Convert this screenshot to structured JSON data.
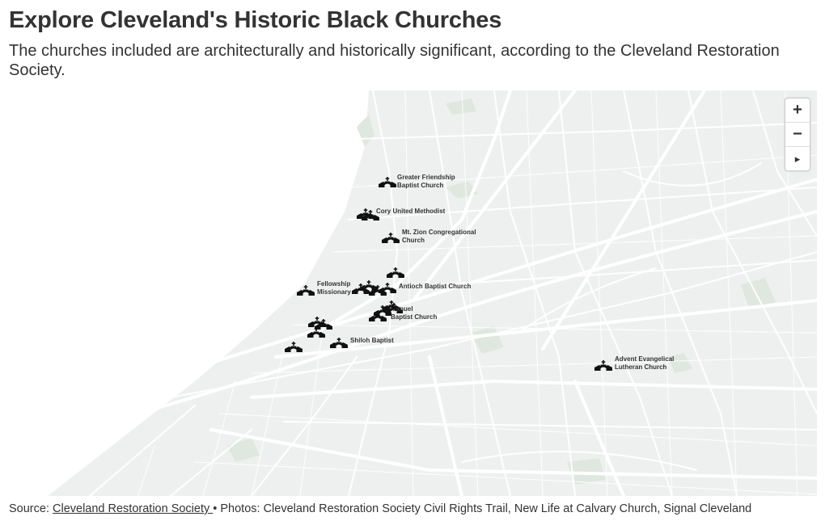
{
  "header": {
    "title": "Explore Cleveland's Historic Black Churches",
    "subtitle": "The churches included are architecturally and historically significant, according to the Cleveland Restoration Society."
  },
  "map": {
    "colors": {
      "land": "#eef0ef",
      "water": "#ffffff",
      "roads": "#ffffff",
      "park": "#dfe8df",
      "marker": "#111111"
    },
    "marker_icon": "church-icon",
    "labels": [
      {
        "id": "greater-friendship",
        "lines": [
          "Greater Friendship",
          "Baptist Church"
        ]
      },
      {
        "id": "cory-united",
        "lines": [
          "Cory United Methodist"
        ]
      },
      {
        "id": "mt-zion",
        "lines": [
          "Mt. Zion Congregational",
          "Church"
        ]
      },
      {
        "id": "fellowship",
        "lines": [
          "Fellowship",
          "Missionary"
        ]
      },
      {
        "id": "antioch",
        "lines": [
          "Antioch Baptist Church"
        ]
      },
      {
        "id": "emmanuel",
        "lines": [
          "...anuel",
          "Baptist Church"
        ]
      },
      {
        "id": "shiloh",
        "lines": [
          "Shiloh Baptist"
        ]
      },
      {
        "id": "advent",
        "lines": [
          "Advent Evangelical",
          "Lutheran Church"
        ]
      }
    ]
  },
  "controls": {
    "zoom_in": "+",
    "zoom_out": "−",
    "compass": "▸"
  },
  "footer": {
    "source_prefix": "Source: ",
    "source_link": "Cleveland Restoration Society ",
    "source_suffix": "• Photos: Cleveland Restoration Society Civil Rights Trail, New Life at Calvary Church, Signal Cleveland"
  }
}
